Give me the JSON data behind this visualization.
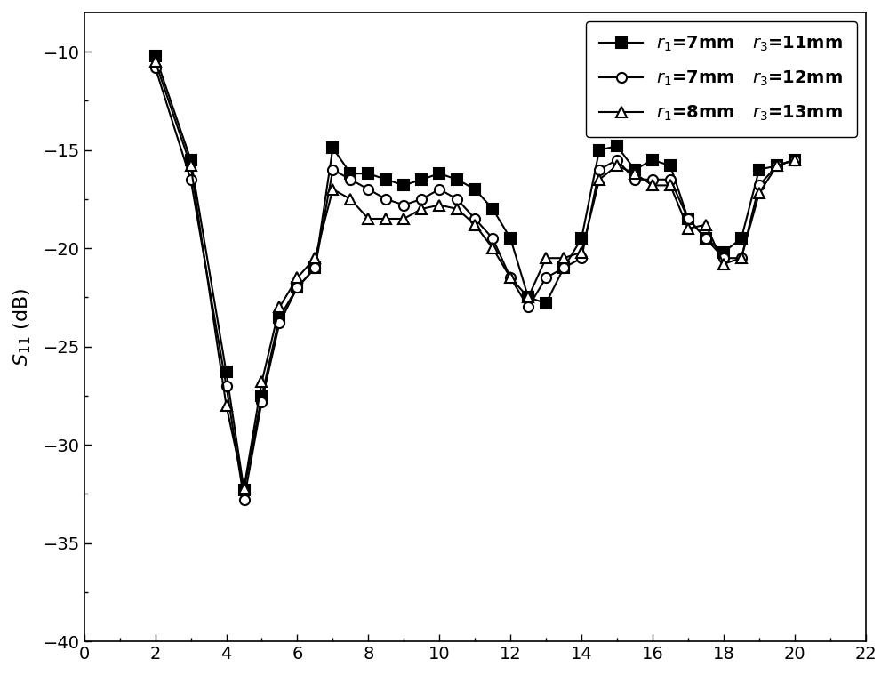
{
  "series": [
    {
      "label": "$r_1$=7mm   $r_3$=11mm",
      "marker": "s",
      "color": "#000000",
      "markerfacecolor": "#000000",
      "x": [
        2.0,
        3.0,
        4.0,
        4.5,
        5.0,
        5.5,
        6.0,
        6.5,
        7.0,
        7.5,
        8.0,
        8.5,
        9.0,
        9.5,
        10.0,
        10.5,
        11.0,
        11.5,
        12.0,
        12.5,
        13.0,
        13.5,
        14.0,
        14.5,
        15.0,
        15.5,
        16.0,
        16.5,
        17.0,
        17.5,
        18.0,
        18.5,
        19.0,
        19.5,
        20.0
      ],
      "y": [
        -10.2,
        -15.5,
        -26.3,
        -32.3,
        -27.5,
        -23.5,
        -22.0,
        -21.0,
        -14.9,
        -16.2,
        -16.2,
        -16.5,
        -16.8,
        -16.5,
        -16.2,
        -16.5,
        -17.0,
        -18.0,
        -19.5,
        -22.5,
        -22.8,
        -21.0,
        -19.5,
        -15.0,
        -14.8,
        -16.0,
        -15.5,
        -15.8,
        -18.5,
        -19.5,
        -20.2,
        -19.5,
        -16.0,
        -15.8,
        -15.5
      ]
    },
    {
      "label": "$r_1$=7mm   $r_3$=12mm",
      "marker": "o",
      "color": "#000000",
      "markerfacecolor": "#ffffff",
      "x": [
        2.0,
        3.0,
        4.0,
        4.5,
        5.0,
        5.5,
        6.0,
        6.5,
        7.0,
        7.5,
        8.0,
        8.5,
        9.0,
        9.5,
        10.0,
        10.5,
        11.0,
        11.5,
        12.0,
        12.5,
        13.0,
        13.5,
        14.0,
        14.5,
        15.0,
        15.5,
        16.0,
        16.5,
        17.0,
        17.5,
        18.0,
        18.5,
        19.0,
        19.5,
        20.0
      ],
      "y": [
        -10.8,
        -16.5,
        -27.0,
        -32.8,
        -27.8,
        -23.8,
        -22.0,
        -21.0,
        -16.0,
        -16.5,
        -17.0,
        -17.5,
        -17.8,
        -17.5,
        -17.0,
        -17.5,
        -18.5,
        -19.5,
        -21.5,
        -23.0,
        -21.5,
        -21.0,
        -20.5,
        -16.0,
        -15.5,
        -16.5,
        -16.5,
        -16.5,
        -18.5,
        -19.5,
        -20.5,
        -20.5,
        -16.8,
        -15.8,
        -15.5
      ]
    },
    {
      "label": "$r_1$=8mm   $r_3$=13mm",
      "marker": "^",
      "color": "#000000",
      "markerfacecolor": "#ffffff",
      "x": [
        2.0,
        3.0,
        4.0,
        4.5,
        5.0,
        5.5,
        6.0,
        6.5,
        7.0,
        7.5,
        8.0,
        8.5,
        9.0,
        9.5,
        10.0,
        10.5,
        11.0,
        11.5,
        12.0,
        12.5,
        13.0,
        13.5,
        14.0,
        14.5,
        15.0,
        15.5,
        16.0,
        16.5,
        17.0,
        17.5,
        18.0,
        18.5,
        19.0,
        19.5,
        20.0
      ],
      "y": [
        -10.5,
        -15.8,
        -28.0,
        -32.2,
        -26.8,
        -23.0,
        -21.5,
        -20.5,
        -17.0,
        -17.5,
        -18.5,
        -18.5,
        -18.5,
        -18.0,
        -17.8,
        -18.0,
        -18.8,
        -20.0,
        -21.5,
        -22.5,
        -20.5,
        -20.5,
        -20.2,
        -16.5,
        -15.8,
        -16.2,
        -16.8,
        -16.8,
        -19.0,
        -18.8,
        -20.8,
        -20.5,
        -17.2,
        -15.8,
        -15.5
      ]
    }
  ],
  "xlabel": "",
  "ylabel": "$S_{11}$ (dB)",
  "xlim": [
    0,
    22
  ],
  "ylim": [
    -40,
    -8
  ],
  "xticks": [
    0,
    2,
    4,
    6,
    8,
    10,
    12,
    14,
    16,
    18,
    20,
    22
  ],
  "yticks": [
    -40,
    -35,
    -30,
    -25,
    -20,
    -15,
    -10
  ],
  "legend_loc": "upper right",
  "background_color": "#ffffff",
  "linewidth": 1.5,
  "markersize": 8
}
